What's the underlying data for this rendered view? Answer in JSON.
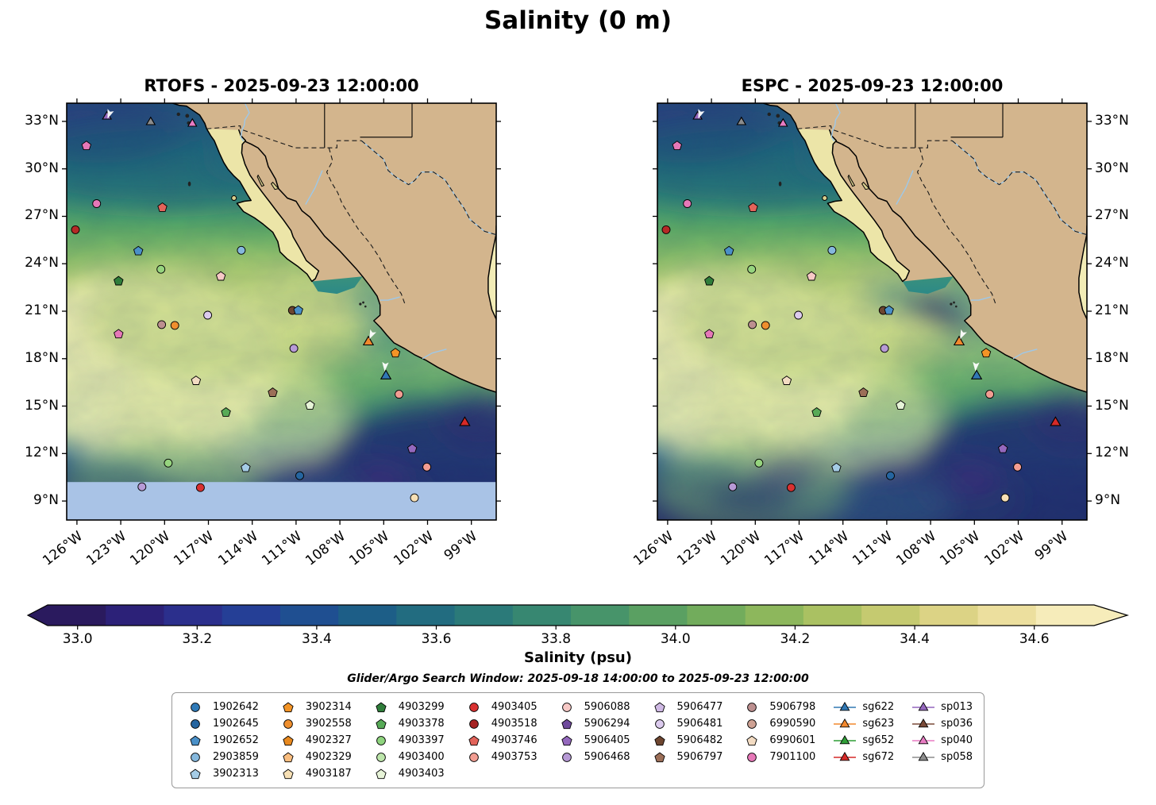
{
  "title": "Salinity (0 m)",
  "search_window": "Glider/Argo Search Window: 2025-09-18 14:00:00 to 2025-09-23 12:00:00",
  "map_colors": {
    "land": "#d3b58d",
    "baja": "#ece5a8",
    "gulf_mexico": "#f2ecb6",
    "no_data": "#a9c3e6",
    "river": "#9ec8e8",
    "coastline": "#000000",
    "ocean_stops": [
      [
        "0",
        "#1b5f78"
      ],
      [
        "0.1",
        "#1d7080"
      ],
      [
        "0.2",
        "#2f8f78"
      ],
      [
        "0.3",
        "#5fae66"
      ],
      [
        "0.42",
        "#a9cc6a"
      ],
      [
        "0.52",
        "#d6dc8e"
      ],
      [
        "0.6",
        "#bcd57e"
      ],
      [
        "0.68",
        "#7fba6a"
      ],
      [
        "0.76",
        "#3f8f74"
      ],
      [
        "0.84",
        "#27638a"
      ],
      [
        "0.92",
        "#243a78"
      ],
      [
        "1",
        "#262c66"
      ]
    ],
    "gulf_stops": [
      [
        "0",
        "#f0e9a8"
      ],
      [
        "0.35",
        "#cfe08c"
      ],
      [
        "0.6",
        "#7dba6a"
      ],
      [
        "0.85",
        "#3f9478"
      ],
      [
        "1",
        "#2e8a86"
      ]
    ]
  },
  "chart_data": {
    "type": "heatmap",
    "description": "Sea-surface salinity (0 m) comparison of two ocean models over the Eastern Pacific / Baja California region with Argo float and glider positions",
    "panels": [
      {
        "model": "RTOFS",
        "time": "2025-09-23 12:00:00",
        "title": "RTOFS - 2025-09-23 12:00:00",
        "no_data_below_lat": 10.2
      },
      {
        "model": "ESPC",
        "time": "2025-09-23 12:00:00",
        "title": "ESPC - 2025-09-23 12:00:00",
        "no_data_below_lat": null
      }
    ],
    "extent": {
      "lon_min": -126.7,
      "lon_max": -97.3,
      "lat_min": 7.8,
      "lat_max": 34.15
    },
    "lat_ticks": [
      {
        "value": 33,
        "label": "33°N"
      },
      {
        "value": 30,
        "label": "30°N"
      },
      {
        "value": 27,
        "label": "27°N"
      },
      {
        "value": 24,
        "label": "24°N"
      },
      {
        "value": 21,
        "label": "21°N"
      },
      {
        "value": 18,
        "label": "18°N"
      },
      {
        "value": 15,
        "label": "15°N"
      },
      {
        "value": 12,
        "label": "12°N"
      },
      {
        "value": 9,
        "label": "9°N"
      }
    ],
    "lon_ticks": [
      {
        "value": -126,
        "label": "126°W"
      },
      {
        "value": -123,
        "label": "123°W"
      },
      {
        "value": -120,
        "label": "120°W"
      },
      {
        "value": -117,
        "label": "117°W"
      },
      {
        "value": -114,
        "label": "114°W"
      },
      {
        "value": -111,
        "label": "111°W"
      },
      {
        "value": -108,
        "label": "108°W"
      },
      {
        "value": -105,
        "label": "105°W"
      },
      {
        "value": -102,
        "label": "102°W"
      },
      {
        "value": -99,
        "label": "99°W"
      }
    ],
    "colorbar": {
      "label": "Salinity (psu)",
      "vmin": 32.95,
      "vmax": 34.7,
      "extend": "both",
      "tick_values": [
        33.0,
        33.2,
        33.4,
        33.6,
        33.8,
        34.0,
        34.2,
        34.4,
        34.6
      ],
      "tick_labels": [
        "33.0",
        "33.2",
        "33.4",
        "33.6",
        "33.8",
        "34.0",
        "34.2",
        "34.4",
        "34.6"
      ],
      "colors": [
        "#2a1a5e",
        "#2c2178",
        "#2b2f8c",
        "#253f96",
        "#1f4f91",
        "#1d5e87",
        "#226c80",
        "#2b7a79",
        "#378771",
        "#47946a",
        "#5aa062",
        "#72ac5c",
        "#8db75c",
        "#aac162",
        "#c5ca70",
        "#dcd385",
        "#ecdf9e",
        "#f6ecba"
      ]
    },
    "markers": [
      {
        "shape": "triangle",
        "color": "#9467bd",
        "lon": -123.95,
        "lat": 33.3
      },
      {
        "shape": "triangle",
        "color": "#8c8c8c",
        "lon": -120.95,
        "lat": 32.95
      },
      {
        "shape": "triangle",
        "color": "#e87cc3",
        "lon": -118.1,
        "lat": 32.85
      },
      {
        "shape": "pentagon",
        "color": "#e678b8",
        "lon": -125.35,
        "lat": 31.45
      },
      {
        "shape": "circle",
        "color": "#e678b8",
        "lon": -124.65,
        "lat": 27.8
      },
      {
        "shape": "pentagon",
        "color": "#e2635a",
        "lon": -120.15,
        "lat": 27.55
      },
      {
        "shape": "circle",
        "color": "#b52a26",
        "lon": -126.1,
        "lat": 26.15
      },
      {
        "shape": "pentagon",
        "color": "#4a90c8",
        "lon": -121.8,
        "lat": 24.8
      },
      {
        "shape": "circle",
        "color": "#85b8dd",
        "lon": -114.75,
        "lat": 24.85
      },
      {
        "shape": "circle",
        "color": "#96d47e",
        "lon": -120.25,
        "lat": 23.65
      },
      {
        "shape": "pentagon",
        "color": "#2f7d3a",
        "lon": -123.15,
        "lat": 22.9
      },
      {
        "shape": "pentagon",
        "color": "#f7c9c6",
        "lon": -116.15,
        "lat": 23.2
      },
      {
        "shape": "circle",
        "color": "#dccbee",
        "lon": -117.05,
        "lat": 20.75
      },
      {
        "shape": "circle",
        "color": "#bc8f8f",
        "lon": -120.2,
        "lat": 20.15
      },
      {
        "shape": "circle",
        "color": "#ef8f2e",
        "lon": -119.3,
        "lat": 20.1
      },
      {
        "shape": "pentagon",
        "color": "#e678b8",
        "lon": -123.15,
        "lat": 19.55
      },
      {
        "shape": "circle",
        "color": "#6e4630",
        "lon": -111.25,
        "lat": 21.05
      },
      {
        "shape": "pentagon",
        "color": "#4a90c8",
        "lon": -110.85,
        "lat": 21.05
      },
      {
        "shape": "circle",
        "color": "#b79ad6",
        "lon": -111.15,
        "lat": 18.65
      },
      {
        "shape": "pentagon",
        "color": "#f3dcc3",
        "lon": -117.85,
        "lat": 16.6
      },
      {
        "shape": "pentagon",
        "color": "#9c6f58",
        "lon": -112.6,
        "lat": 15.85
      },
      {
        "shape": "pentagon",
        "color": "#e7f4d8",
        "lon": -110.05,
        "lat": 15.05
      },
      {
        "shape": "pentagon",
        "color": "#57aa57",
        "lon": -115.8,
        "lat": 14.6
      },
      {
        "shape": "circle",
        "color": "#f29d92",
        "lon": -103.95,
        "lat": 15.75
      },
      {
        "shape": "pentagon",
        "color": "#9468bd",
        "lon": -103.05,
        "lat": 12.3
      },
      {
        "shape": "circle",
        "color": "#96d47e",
        "lon": -119.75,
        "lat": 11.4
      },
      {
        "shape": "pentagon",
        "color": "#a5cce6",
        "lon": -114.45,
        "lat": 11.1
      },
      {
        "shape": "circle",
        "color": "#2565a0",
        "lon": -110.75,
        "lat": 10.6
      },
      {
        "shape": "circle",
        "color": "#f29d92",
        "lon": -102.05,
        "lat": 11.15
      },
      {
        "shape": "circle",
        "color": "#b79ad6",
        "lon": -121.55,
        "lat": 9.9
      },
      {
        "shape": "circle",
        "color": "#d93131",
        "lon": -117.55,
        "lat": 9.85
      },
      {
        "shape": "circle",
        "color": "#f7e0b5",
        "lon": -102.9,
        "lat": 9.2
      },
      {
        "shape": "pentagon",
        "color": "#f39426",
        "lon": -104.2,
        "lat": 18.35
      },
      {
        "shape": "triangle",
        "color": "#f2882d",
        "lon": -106.05,
        "lat": 19.05,
        "glider": true
      },
      {
        "shape": "triangle",
        "color": "#3178b4",
        "lon": -104.85,
        "lat": 16.9,
        "glider": true
      },
      {
        "shape": "triangle",
        "color": "#d62a28",
        "lon": -99.45,
        "lat": 13.95,
        "glider": true
      }
    ],
    "arrows": [
      {
        "lon": -123.75,
        "lat": 33.55,
        "rot": 200
      },
      {
        "lon": -105.8,
        "lat": 19.6,
        "rot": 205
      },
      {
        "lon": -104.9,
        "lat": 17.6,
        "rot": 185
      }
    ],
    "legend": {
      "columns": [
        [
          {
            "id": "1902642",
            "shape": "circle",
            "color": "#2f7ab8"
          },
          {
            "id": "1902645",
            "shape": "circle",
            "color": "#2565a0"
          },
          {
            "id": "1902652",
            "shape": "pentagon",
            "color": "#4a90c8"
          },
          {
            "id": "2903859",
            "shape": "circle",
            "color": "#85b8dd"
          },
          {
            "id": "3902313",
            "shape": "pentagon",
            "color": "#a5cce6"
          }
        ],
        [
          {
            "id": "3902314",
            "shape": "pentagon",
            "color": "#f39426"
          },
          {
            "id": "3902558",
            "shape": "circle",
            "color": "#ef8f2e"
          },
          {
            "id": "4902327",
            "shape": "pentagon",
            "color": "#e8891f"
          },
          {
            "id": "4902329",
            "shape": "pentagon",
            "color": "#f9bd7f"
          },
          {
            "id": "4903187",
            "shape": "pentagon",
            "color": "#f7e0b5"
          }
        ],
        [
          {
            "id": "4903299",
            "shape": "pentagon",
            "color": "#2f7d3a"
          },
          {
            "id": "4903378",
            "shape": "pentagon",
            "color": "#57aa57"
          },
          {
            "id": "4903397",
            "shape": "circle",
            "color": "#8ed47e"
          },
          {
            "id": "4903400",
            "shape": "circle",
            "color": "#bde6ab"
          },
          {
            "id": "4903403",
            "shape": "pentagon",
            "color": "#e7f4d8"
          }
        ],
        [
          {
            "id": "4903405",
            "shape": "circle",
            "color": "#d93131"
          },
          {
            "id": "4903518",
            "shape": "circle",
            "color": "#a62222"
          },
          {
            "id": "4903746",
            "shape": "pentagon",
            "color": "#e2635a"
          },
          {
            "id": "4903753",
            "shape": "circle",
            "color": "#f29d92"
          }
        ],
        [
          {
            "id": "5906088",
            "shape": "circle",
            "color": "#f7c9c6"
          },
          {
            "id": "5906294",
            "shape": "pentagon",
            "color": "#6f4a9c"
          },
          {
            "id": "5906405",
            "shape": "pentagon",
            "color": "#9468bd"
          },
          {
            "id": "5906468",
            "shape": "circle",
            "color": "#b79ad6"
          }
        ],
        [
          {
            "id": "5906477",
            "shape": "pentagon",
            "color": "#cfb9e4"
          },
          {
            "id": "5906481",
            "shape": "circle",
            "color": "#dccbee"
          },
          {
            "id": "5906482",
            "shape": "pentagon",
            "color": "#6e4630"
          },
          {
            "id": "5906797",
            "shape": "pentagon",
            "color": "#9c6f58"
          }
        ],
        [
          {
            "id": "5906798",
            "shape": "circle",
            "color": "#bc8f8f"
          },
          {
            "id": "6990590",
            "shape": "circle",
            "color": "#cfa294"
          },
          {
            "id": "6990601",
            "shape": "pentagon",
            "color": "#f3dcc3"
          },
          {
            "id": "7901100",
            "shape": "circle",
            "color": "#e678b8"
          }
        ],
        [
          {
            "id": "sg622",
            "shape": "triangle",
            "color": "#3178b4",
            "line": true
          },
          {
            "id": "sg623",
            "shape": "triangle",
            "color": "#f2882d",
            "line": true
          },
          {
            "id": "sg652",
            "shape": "triangle",
            "color": "#2f9e37",
            "line": true
          },
          {
            "id": "sg672",
            "shape": "triangle",
            "color": "#d62a28",
            "line": true
          }
        ],
        [
          {
            "id": "sp013",
            "shape": "triangle",
            "color": "#9467bd",
            "line": true
          },
          {
            "id": "sp036",
            "shape": "triangle",
            "color": "#7a4a38",
            "line": true
          },
          {
            "id": "sp040",
            "shape": "triangle",
            "color": "#e87cc3",
            "line": true
          },
          {
            "id": "sp058",
            "shape": "triangle",
            "color": "#8c8c8c",
            "line": true
          }
        ]
      ]
    }
  }
}
